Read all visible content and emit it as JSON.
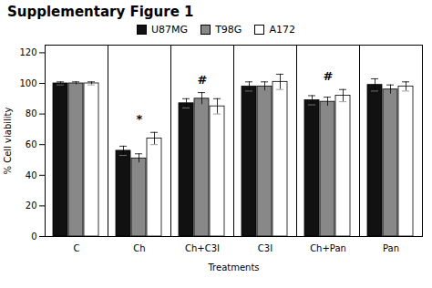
{
  "chart_data": {
    "type": "bar",
    "title": "Supplementary Figure 1",
    "xlabel": "Treatments",
    "ylabel": "% Cell viability",
    "categories": [
      "C",
      "Ch",
      "Ch+C3I",
      "C3I",
      "Ch+Pan",
      "Pan"
    ],
    "series": [
      {
        "name": "U87MG",
        "color": "#111111",
        "values": [
          100,
          56,
          87,
          98,
          89,
          99
        ],
        "errors": [
          1,
          3,
          3,
          3,
          3,
          4
        ]
      },
      {
        "name": "T98G",
        "color": "#888888",
        "values": [
          100,
          51,
          90,
          98,
          88,
          96
        ],
        "errors": [
          1,
          3,
          4,
          3,
          3,
          3
        ]
      },
      {
        "name": "A172",
        "color": "#ffffff",
        "values": [
          100,
          64,
          85,
          101,
          92,
          98
        ],
        "errors": [
          1,
          4,
          5,
          5,
          4,
          3
        ]
      }
    ],
    "annotations": [
      {
        "text": "*",
        "x": "Ch",
        "y": 74
      },
      {
        "text": "#",
        "x": "Ch+C3I",
        "y": 100
      },
      {
        "text": "#",
        "x": "Ch+Pan",
        "y": 102
      }
    ],
    "ylim": [
      0,
      125
    ],
    "yticks": [
      0,
      20,
      40,
      60,
      80,
      100,
      120
    ],
    "grid": false,
    "legend": "top"
  }
}
